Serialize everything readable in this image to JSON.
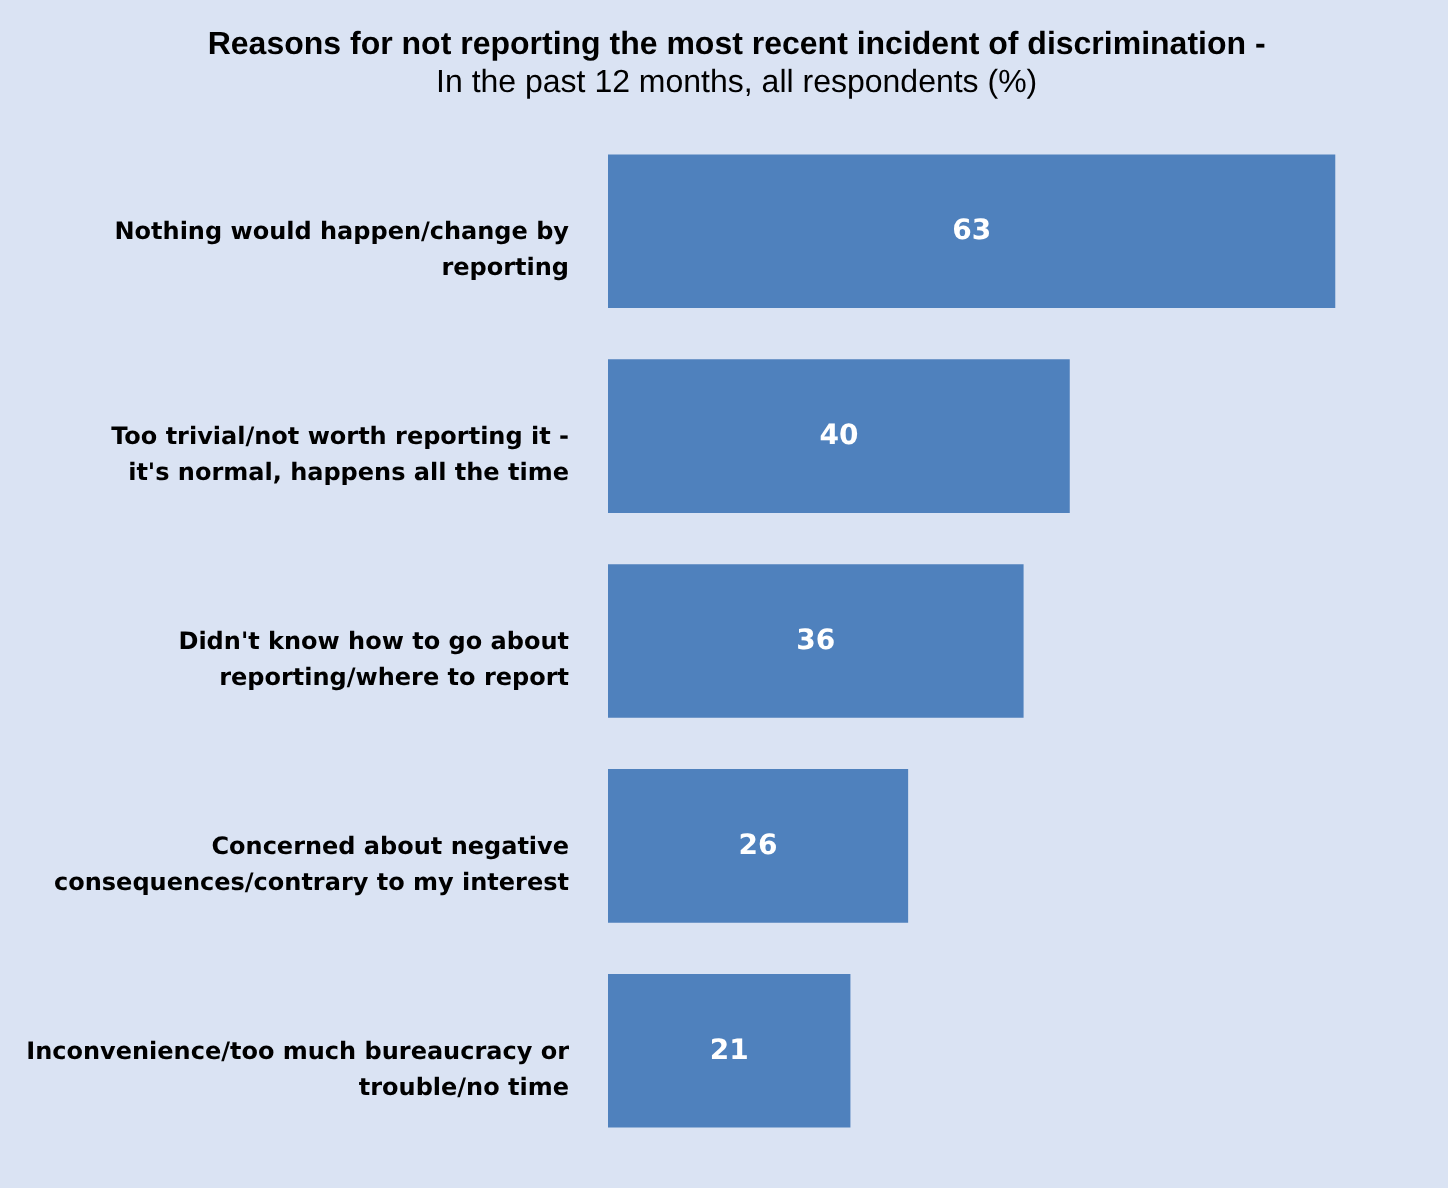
{
  "chart_data": {
    "type": "bar",
    "orientation": "horizontal",
    "title": "Reasons for not reporting the most recent incident of discrimination -",
    "subtitle": "In the past 12 months, all respondents (%)",
    "categories": [
      "Nothing would happen/change by reporting",
      "Too trivial/not worth reporting it - it's normal, happens all the time",
      "Didn't know how to go about reporting/where to report",
      "Concerned about negative consequences/contrary to my interest",
      "Inconvenience/too much bureaucracy or trouble/no time"
    ],
    "values": [
      63,
      40,
      36,
      26,
      21
    ],
    "color": "#4f81bd",
    "data_labels": true
  }
}
